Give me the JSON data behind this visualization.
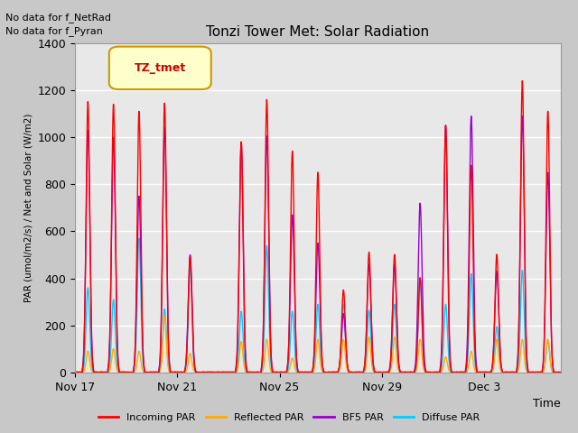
{
  "title": "Tonzi Tower Met: Solar Radiation",
  "ylabel": "PAR (umol/m2/s) / Net and Solar (W/m2)",
  "xlabel": "Time",
  "ylim": [
    0,
    1400
  ],
  "plot_bg_color": "#e8e8e8",
  "grid_color": "#ffffff",
  "annotation_text1": "No data for f_NetRad",
  "annotation_text2": "No data for f_Pyran",
  "legend_box_text": "TZ_tmet",
  "legend_box_color": "#ffffcc",
  "legend_box_edge": "#cc9900",
  "series": {
    "incoming_par": {
      "color": "#ff0000",
      "label": "Incoming PAR",
      "lw": 1.0
    },
    "reflected_par": {
      "color": "#ffaa00",
      "label": "Reflected PAR",
      "lw": 1.0
    },
    "bf5_par": {
      "color": "#9900cc",
      "label": "BF5 PAR",
      "lw": 1.0
    },
    "diffuse_par": {
      "color": "#00ccff",
      "label": "Diffuse PAR",
      "lw": 1.0
    }
  },
  "x_tick_labels": [
    "Nov 17",
    "Nov 21",
    "Nov 25",
    "Nov 29",
    "Dec 3"
  ],
  "x_tick_days": [
    0,
    4,
    8,
    12,
    16
  ],
  "y_ticks": [
    0,
    200,
    400,
    600,
    800,
    1000,
    1200,
    1400
  ],
  "n_days": 19,
  "points_per_day": 144,
  "day_peaks": {
    "incoming": [
      1150,
      1140,
      1110,
      1145,
      490,
      0,
      980,
      1160,
      940,
      850,
      350,
      510,
      500,
      400,
      1050,
      880,
      500,
      1240,
      1110
    ],
    "reflected": [
      90,
      100,
      90,
      240,
      80,
      0,
      130,
      140,
      60,
      140,
      140,
      150,
      150,
      140,
      65,
      90,
      140,
      140,
      140
    ],
    "bf5": [
      1030,
      1000,
      750,
      1040,
      500,
      0,
      980,
      1005,
      670,
      550,
      250,
      460,
      460,
      720,
      1050,
      1090,
      430,
      1090,
      850
    ],
    "diffuse": [
      360,
      310,
      570,
      270,
      450,
      0,
      260,
      540,
      260,
      290,
      290,
      265,
      290,
      405,
      290,
      420,
      195,
      435,
      135
    ]
  }
}
